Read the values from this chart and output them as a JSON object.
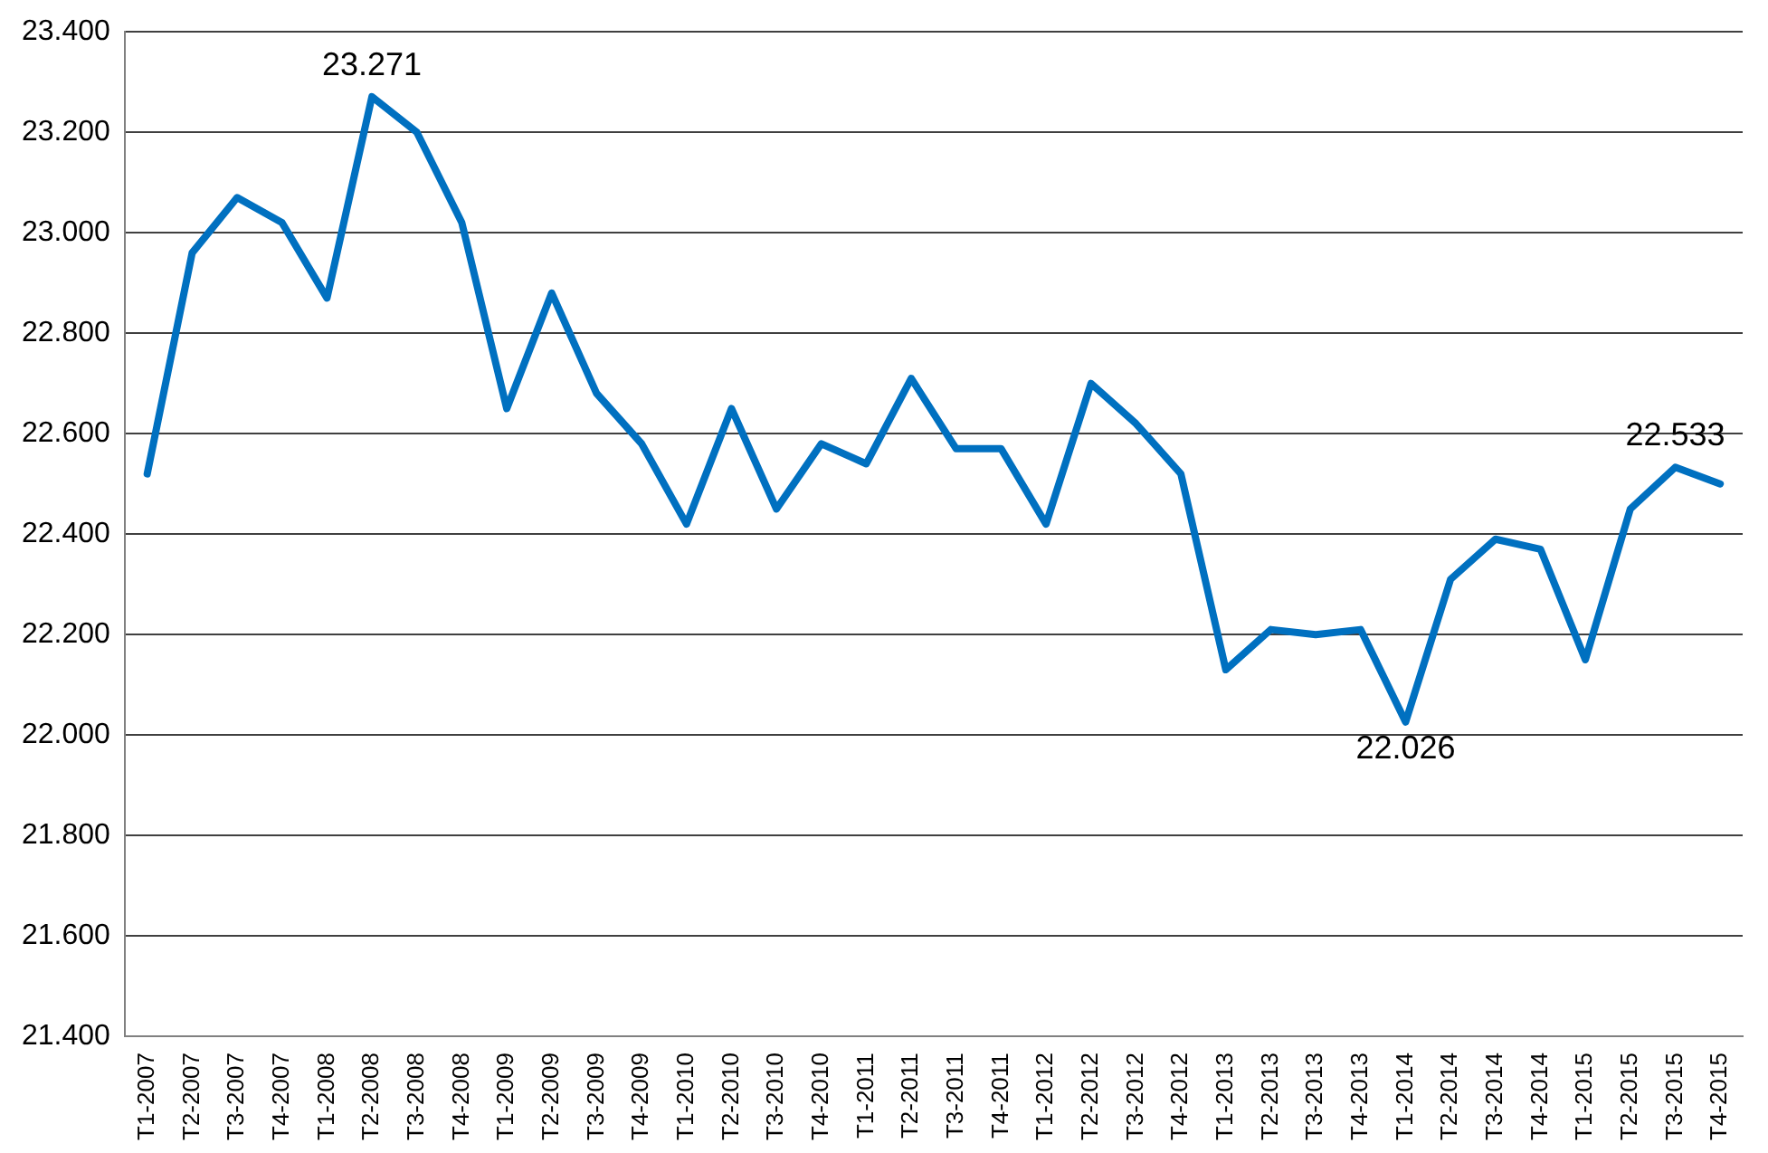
{
  "chart_data": {
    "type": "line",
    "categories": [
      "T1-2007",
      "T2-2007",
      "T3-2007",
      "T4-2007",
      "T1-2008",
      "T2-2008",
      "T3-2008",
      "T4-2008",
      "T1-2009",
      "T2-2009",
      "T3-2009",
      "T4-2009",
      "T1-2010",
      "T2-2010",
      "T3-2010",
      "T4-2010",
      "T1-2011",
      "T2-2011",
      "T3-2011",
      "T4-2011",
      "T1-2012",
      "T2-2012",
      "T3-2012",
      "T4-2012",
      "T1-2013",
      "T2-2013",
      "T3-2013",
      "T4-2013",
      "T1-2014",
      "T2-2014",
      "T3-2014",
      "T4-2014",
      "T1-2015",
      "T2-2015",
      "T3-2015",
      "T4-2015"
    ],
    "series": [
      {
        "color": "#0070c0",
        "values": [
          22.52,
          22.96,
          23.07,
          23.02,
          22.87,
          23.271,
          23.2,
          23.02,
          22.65,
          22.88,
          22.68,
          22.58,
          22.42,
          22.65,
          22.45,
          22.58,
          22.54,
          22.71,
          22.57,
          22.57,
          22.42,
          22.7,
          22.62,
          22.52,
          22.13,
          22.21,
          22.2,
          22.21,
          22.026,
          22.31,
          22.39,
          22.37,
          22.15,
          22.45,
          22.533,
          22.5
        ],
        "value_labels": [
          null,
          null,
          null,
          null,
          null,
          "23.271",
          null,
          null,
          null,
          null,
          null,
          null,
          null,
          null,
          null,
          null,
          null,
          null,
          null,
          null,
          null,
          null,
          null,
          null,
          null,
          null,
          null,
          null,
          "22.026",
          null,
          null,
          null,
          null,
          null,
          "22.533",
          null
        ]
      }
    ],
    "ylim": [
      21.4,
      23.4
    ],
    "yticks": [
      {
        "value": 21.4,
        "label": "21.400"
      },
      {
        "value": 21.6,
        "label": "21.600"
      },
      {
        "value": 21.8,
        "label": "21.800"
      },
      {
        "value": 22.0,
        "label": "22.000"
      },
      {
        "value": 22.2,
        "label": "22.200"
      },
      {
        "value": 22.4,
        "label": "22.400"
      },
      {
        "value": 22.6,
        "label": "22.600"
      },
      {
        "value": 22.8,
        "label": "22.800"
      },
      {
        "value": 23.0,
        "label": "23.000"
      },
      {
        "value": 23.2,
        "label": "23.200"
      },
      {
        "value": 23.4,
        "label": "23.400"
      }
    ],
    "grid": "y",
    "legend": false,
    "marker": "none",
    "line_style": "solid"
  }
}
